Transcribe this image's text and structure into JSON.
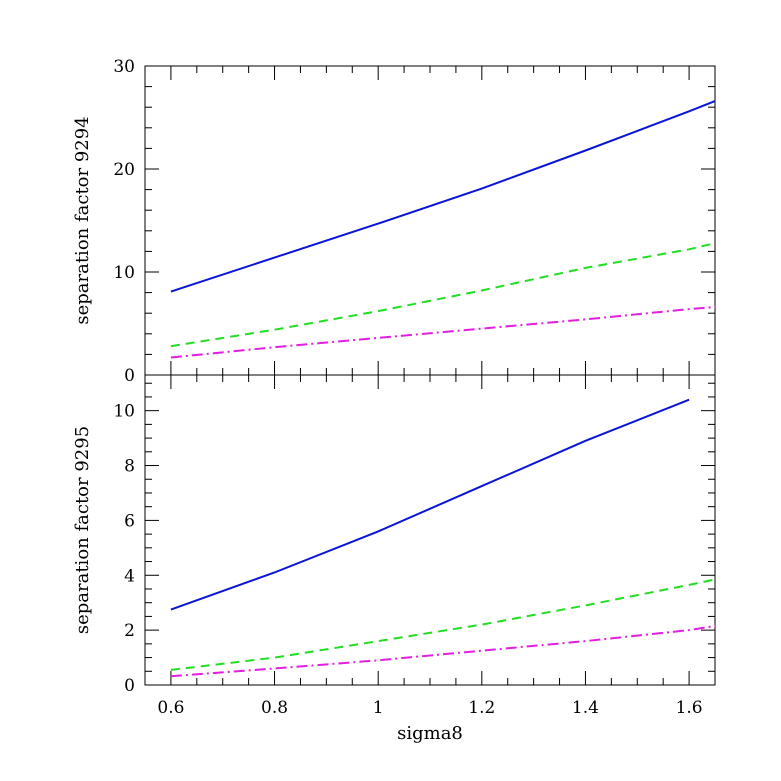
{
  "chart_data": [
    {
      "type": "line",
      "ylabel": "separation factor 9294",
      "xlim": [
        0.55,
        1.65
      ],
      "ylim": [
        0,
        30
      ],
      "yticks": [
        0,
        10,
        20,
        30
      ],
      "xticks": [],
      "grid": false,
      "series": [
        {
          "style": "solid",
          "color": "#0a14d6",
          "x": [
            0.6,
            0.8,
            1.0,
            1.2,
            1.4,
            1.6,
            1.65
          ],
          "y": [
            8.1,
            11.4,
            14.7,
            18.1,
            21.8,
            25.6,
            26.6
          ]
        },
        {
          "style": "dashed",
          "color": "#22dd22",
          "x": [
            0.6,
            0.8,
            1.0,
            1.2,
            1.4,
            1.6,
            1.65
          ],
          "y": [
            2.8,
            4.4,
            6.2,
            8.2,
            10.4,
            12.2,
            12.8
          ]
        },
        {
          "style": "dashdot",
          "color": "#e11ee1",
          "x": [
            0.6,
            0.8,
            1.0,
            1.2,
            1.4,
            1.6,
            1.65
          ],
          "y": [
            1.7,
            2.7,
            3.6,
            4.5,
            5.4,
            6.4,
            6.6
          ]
        }
      ]
    },
    {
      "type": "line",
      "ylabel": "separation factor 9295",
      "xlabel": "sigma8",
      "xlim": [
        0.55,
        1.65
      ],
      "ylim": [
        0,
        11.3
      ],
      "yticks": [
        0,
        2,
        4,
        6,
        8,
        10
      ],
      "xticks": [
        0.6,
        0.8,
        1,
        1.2,
        1.4,
        1.6
      ],
      "grid": false,
      "series": [
        {
          "style": "solid",
          "color": "#0a14d6",
          "x": [
            0.6,
            0.8,
            1.0,
            1.2,
            1.4,
            1.6
          ],
          "y": [
            2.75,
            4.1,
            5.6,
            7.25,
            8.9,
            10.4
          ]
        },
        {
          "style": "dashed",
          "color": "#22dd22",
          "x": [
            0.6,
            0.8,
            1.0,
            1.2,
            1.4,
            1.6,
            1.65
          ],
          "y": [
            0.55,
            1.0,
            1.6,
            2.2,
            2.9,
            3.65,
            3.85
          ]
        },
        {
          "style": "dashdot",
          "color": "#e11ee1",
          "x": [
            0.6,
            0.8,
            1.0,
            1.2,
            1.4,
            1.6,
            1.65
          ],
          "y": [
            0.32,
            0.6,
            0.9,
            1.25,
            1.6,
            2.0,
            2.15
          ]
        }
      ]
    }
  ]
}
